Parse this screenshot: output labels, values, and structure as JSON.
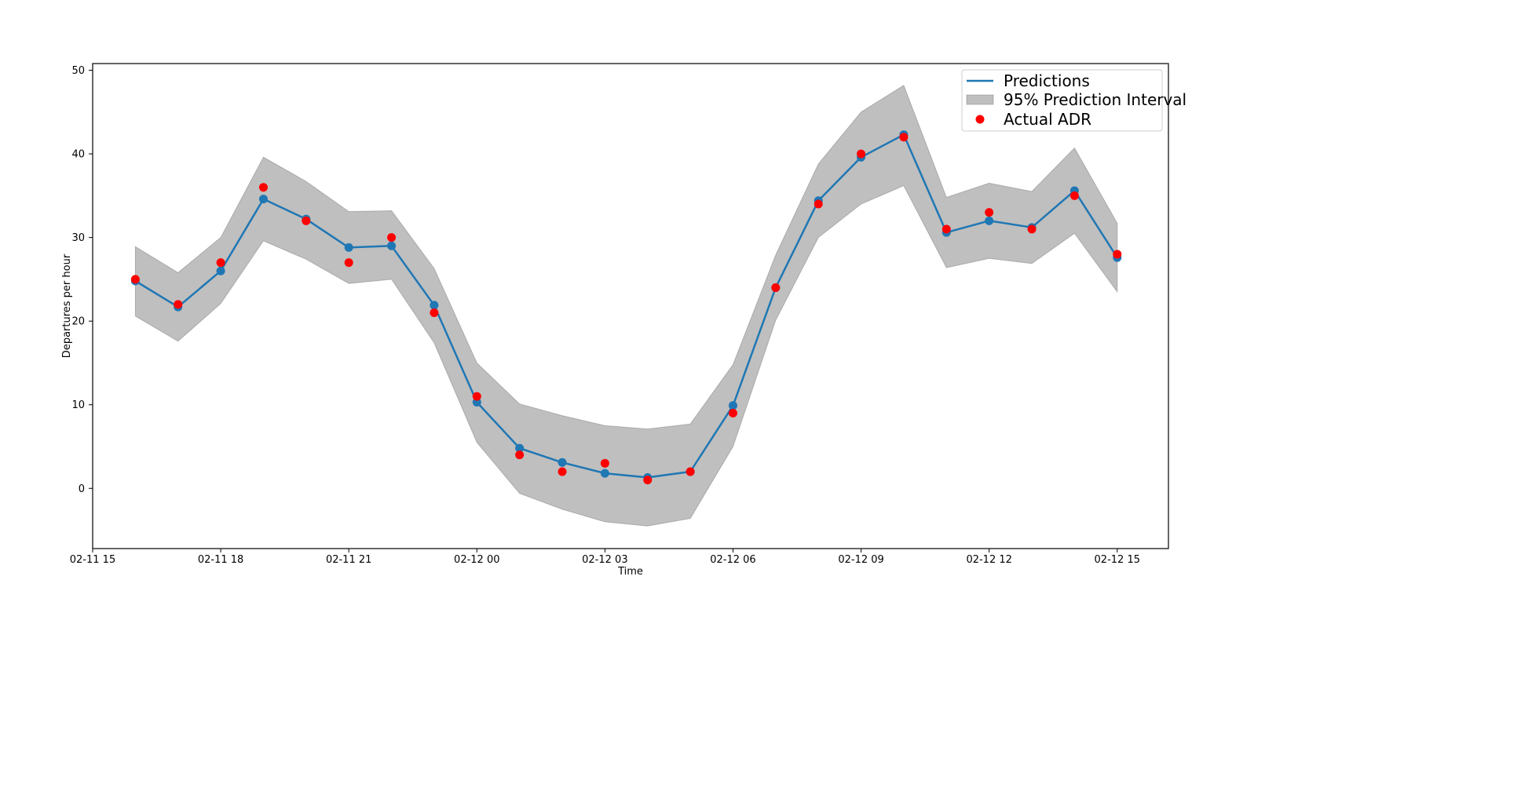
{
  "chart_data": {
    "type": "line",
    "title": "",
    "xlabel": "Time",
    "ylabel": "Departures per hour",
    "x_hours": [
      1,
      2,
      3,
      4,
      5,
      6,
      7,
      8,
      9,
      10,
      11,
      12,
      13,
      14,
      15,
      16,
      17,
      18,
      19,
      20,
      21,
      22,
      23,
      24
    ],
    "xlim": [
      0,
      25.2
    ],
    "ylim": [
      -7.2,
      50.8
    ],
    "x_ticks": [
      {
        "hour": 0,
        "label": "02-11 15"
      },
      {
        "hour": 3,
        "label": "02-11 18"
      },
      {
        "hour": 6,
        "label": "02-11 21"
      },
      {
        "hour": 9,
        "label": "02-12 00"
      },
      {
        "hour": 12,
        "label": "02-12 03"
      },
      {
        "hour": 15,
        "label": "02-12 06"
      },
      {
        "hour": 18,
        "label": "02-12 09"
      },
      {
        "hour": 21,
        "label": "02-12 12"
      },
      {
        "hour": 24,
        "label": "02-12 15"
      }
    ],
    "y_ticks": [
      {
        "value": 0,
        "label": "0"
      },
      {
        "value": 10,
        "label": "10"
      },
      {
        "value": 20,
        "label": "20"
      },
      {
        "value": 30,
        "label": "30"
      },
      {
        "value": 40,
        "label": "40"
      },
      {
        "value": 50,
        "label": "50"
      }
    ],
    "series": [
      {
        "name": "Predictions",
        "kind": "line",
        "color": "#1f77b4",
        "values": [
          24.8,
          21.7,
          26.0,
          34.6,
          32.2,
          28.8,
          29.0,
          21.9,
          10.3,
          4.8,
          3.1,
          1.8,
          1.3,
          2.0,
          9.9,
          24.0,
          34.4,
          39.6,
          42.3,
          30.6,
          32.0,
          31.2,
          35.6,
          27.6
        ]
      },
      {
        "name": "95% Prediction Interval",
        "kind": "band",
        "color": "#808080",
        "lower": [
          20.6,
          17.6,
          22.1,
          29.6,
          27.4,
          24.5,
          25.0,
          17.4,
          5.5,
          -0.6,
          -2.5,
          -4.0,
          -4.5,
          -3.6,
          5.0,
          20.1,
          30.0,
          34.0,
          36.2,
          26.4,
          27.5,
          26.9,
          30.5,
          23.5
        ],
        "upper": [
          28.9,
          25.8,
          30.0,
          39.6,
          36.7,
          33.1,
          33.2,
          26.3,
          15.0,
          10.1,
          8.7,
          7.5,
          7.1,
          7.7,
          14.8,
          27.9,
          38.8,
          45.0,
          48.2,
          34.8,
          36.5,
          35.5,
          40.7,
          31.7
        ]
      },
      {
        "name": "Actual ADR",
        "kind": "scatter",
        "color": "#ff0000",
        "values": [
          25,
          22,
          27,
          36,
          32,
          27,
          30,
          21,
          11,
          4,
          2,
          3,
          1,
          2,
          9,
          24,
          34,
          40,
          42,
          31,
          33,
          31,
          35,
          28
        ]
      }
    ],
    "legend_position": "upper-right"
  }
}
